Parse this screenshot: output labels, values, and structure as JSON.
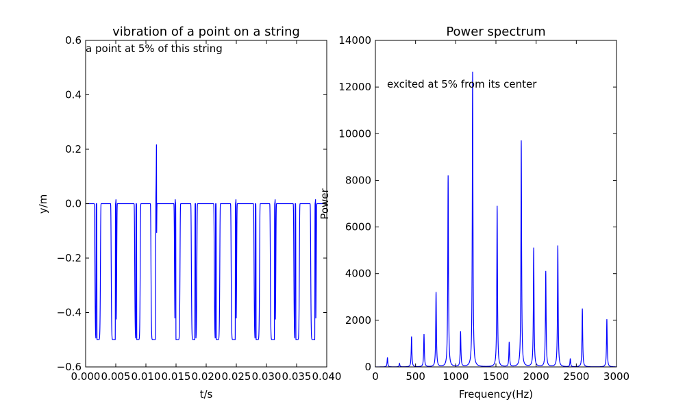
{
  "chart_data": [
    {
      "type": "line",
      "title": "vibration of a point on a string",
      "xlabel": "t/s",
      "ylabel": "y/m",
      "xlim": [
        0.0,
        0.04
      ],
      "ylim": [
        -0.6,
        0.6
      ],
      "xticks": [
        "0.000",
        "0.005",
        "0.010",
        "0.015",
        "0.020",
        "0.025",
        "0.030",
        "0.035",
        "0.040"
      ],
      "yticks": [
        "−0.6",
        "−0.4",
        "−0.2",
        "0.0",
        "0.2",
        "0.4",
        "0.6"
      ],
      "annotation": "a point at 5% of this string",
      "line_color": "#0000ff",
      "pulse_amplitude": 0.5,
      "positive_pulse_times": [
        0.0018,
        0.005,
        0.0084,
        0.0117,
        0.0149,
        0.0182,
        0.0216,
        0.0249,
        0.0282,
        0.0314,
        0.0348,
        0.0381
      ],
      "negative_pulse_times": [
        0.002,
        0.0047,
        0.0086,
        0.0113,
        0.0152,
        0.018,
        0.0218,
        0.0246,
        0.0284,
        0.0311,
        0.035,
        0.0378
      ]
    },
    {
      "type": "line",
      "title": "Power spectrum",
      "xlabel": "Frequency(Hz)",
      "ylabel": "Power",
      "xlim": [
        0,
        3000
      ],
      "ylim": [
        0,
        14000
      ],
      "xticks": [
        "0",
        "500",
        "1000",
        "1500",
        "2000",
        "2500",
        "3000"
      ],
      "yticks": [
        "0",
        "2000",
        "4000",
        "6000",
        "8000",
        "10000",
        "12000",
        "14000"
      ],
      "annotation": "excited at 5% from its center",
      "line_color": "#0000ff",
      "peaks": [
        {
          "freq": 150,
          "power": 400
        },
        {
          "freq": 300,
          "power": 150
        },
        {
          "freq": 450,
          "power": 1300
        },
        {
          "freq": 605,
          "power": 1400
        },
        {
          "freq": 755,
          "power": 3200
        },
        {
          "freq": 905,
          "power": 8200
        },
        {
          "freq": 1060,
          "power": 1500
        },
        {
          "freq": 1210,
          "power": 12650
        },
        {
          "freq": 1515,
          "power": 6900
        },
        {
          "freq": 1665,
          "power": 1050
        },
        {
          "freq": 1815,
          "power": 9700
        },
        {
          "freq": 1970,
          "power": 5100
        },
        {
          "freq": 2120,
          "power": 4100
        },
        {
          "freq": 2270,
          "power": 5200
        },
        {
          "freq": 2425,
          "power": 350
        },
        {
          "freq": 2575,
          "power": 2500
        },
        {
          "freq": 2880,
          "power": 2050
        }
      ]
    }
  ]
}
